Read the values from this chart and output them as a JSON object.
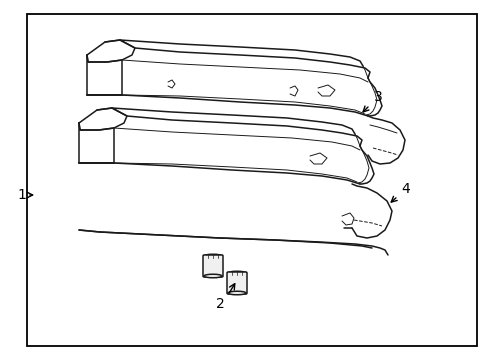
{
  "bg_color": "#ffffff",
  "border_color": "#000000",
  "line_color": "#1a1a1a",
  "label_color": "#000000",
  "fig_width": 4.89,
  "fig_height": 3.6,
  "dpi": 100,
  "border": [
    0.055,
    0.04,
    0.93,
    0.93
  ],
  "label_fontsize": 10
}
